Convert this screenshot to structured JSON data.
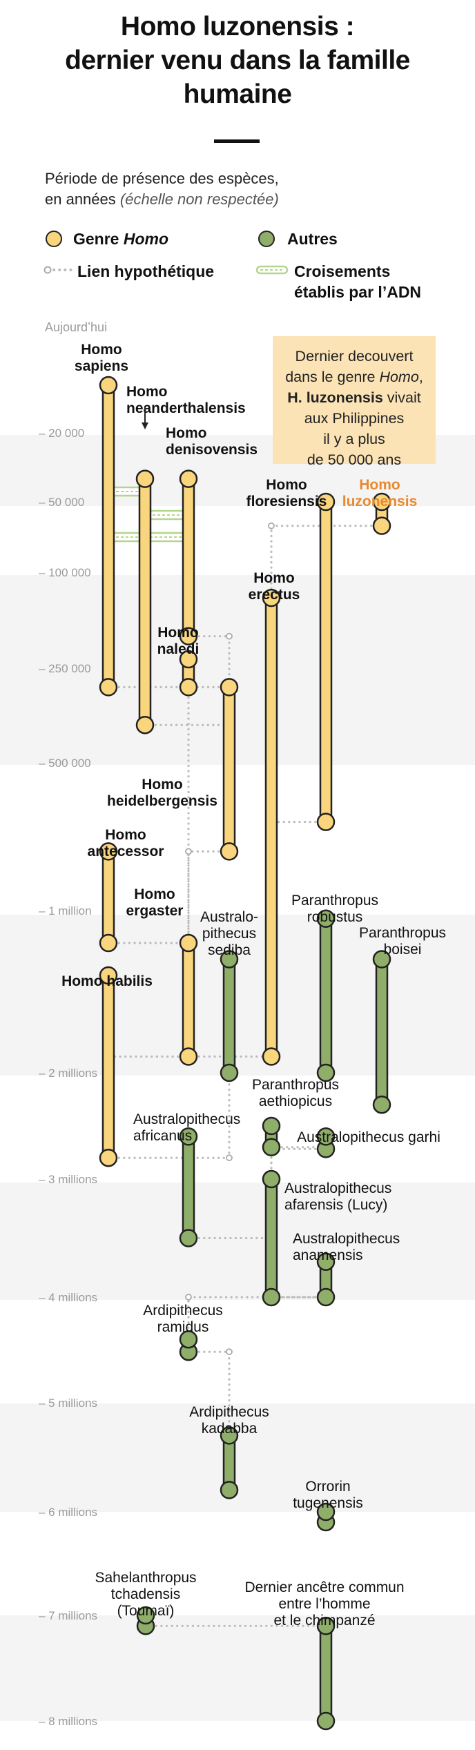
{
  "title": {
    "line1": "Homo luzonensis :",
    "line2": "dernier venu dans la famille",
    "line3": "humaine"
  },
  "subtitle": {
    "line1": "Période de présence des espèces,",
    "line2": "en années",
    "note": "(échelle non respectée)"
  },
  "legend": {
    "homo_prefix": "Genre ",
    "homo_italic": "Homo",
    "others": "Autres",
    "hypothetical": "Lien hypothétique",
    "crossing_line1": "Croisements",
    "crossing_line2": "établis par l’ADN"
  },
  "colors": {
    "homo": "#f9d57d",
    "others": "#8fae6a",
    "band": "#f4f4f4",
    "dotted": "#bbbbbb",
    "dna": "#b4d58c",
    "callout": "#fbe3b6",
    "highlight": "#e8892d",
    "axis": "#9a9a9a"
  },
  "top_label": "Aujourd’hui",
  "axis_ticks": [
    "– 20 000",
    "– 50 000",
    "– 100 000",
    "– 250 000",
    "– 500 000",
    "– 1 million",
    "– 2 millions",
    "– 3 millions",
    "– 4 millions",
    "– 5 millions",
    "– 6 millions",
    "– 7 millions",
    "– 8 millions"
  ],
  "callout": {
    "l1": "Dernier decouvert",
    "l2a": "dans le genre ",
    "l2b": "Homo",
    "l2c": ",",
    "l3a": "H. luzonensis",
    "l3b": " vivait",
    "l4": "aux Philippines",
    "l5": "il y a plus",
    "l6": "de 50 000 ans"
  },
  "species": [
    {
      "id": "sapiens",
      "group": "homo",
      "label": [
        "Homo",
        "sapiens"
      ],
      "bold": true,
      "span": [
        0,
        300000
      ]
    },
    {
      "id": "neanderthalensis",
      "group": "homo",
      "label": [
        "Homo",
        "neanderthalensis"
      ],
      "bold": true,
      "span": [
        40000,
        400000
      ]
    },
    {
      "id": "denisovensis",
      "group": "homo",
      "label": [
        "Homo",
        "denisovensis"
      ],
      "bold": true,
      "span": [
        40000,
        200000
      ]
    },
    {
      "id": "floresiensis",
      "group": "homo",
      "label": [
        "Homo",
        "floresiensis"
      ],
      "bold": true,
      "span": [
        50000,
        700000
      ]
    },
    {
      "id": "luzonensis",
      "group": "homo",
      "label": [
        "Homo",
        "luzonensis"
      ],
      "bold": true,
      "highlight": true,
      "span": [
        50000,
        67000
      ]
    },
    {
      "id": "naledi",
      "group": "homo",
      "label": [
        "Homo",
        "naledi"
      ],
      "bold": true,
      "span": [
        236000,
        300000
      ]
    },
    {
      "id": "erectus",
      "group": "homo",
      "label": [
        "Homo",
        "erectus"
      ],
      "bold": true,
      "span": [
        140000,
        1900000
      ]
    },
    {
      "id": "heidelbergensis",
      "group": "homo",
      "label": [
        "Homo",
        "heidelbergensis"
      ],
      "bold": true,
      "span": [
        300000,
        800000
      ]
    },
    {
      "id": "antecessor",
      "group": "homo",
      "label": [
        "Homo",
        "antecessor"
      ],
      "bold": true,
      "span": [
        800000,
        1200000
      ]
    },
    {
      "id": "ergaster",
      "group": "homo",
      "label": [
        "Homo",
        "ergaster"
      ],
      "bold": true,
      "span": [
        1200000,
        1900000
      ]
    },
    {
      "id": "habilis",
      "group": "homo",
      "label": [
        "Homo habilis"
      ],
      "bold": true,
      "span": [
        1400000,
        2800000
      ]
    },
    {
      "id": "sediba",
      "group": "others",
      "label": [
        "Australo-",
        "pithecus",
        "sediba"
      ],
      "span": [
        1300000,
        2000000
      ]
    },
    {
      "id": "robustus",
      "group": "others",
      "label": [
        "Paranthropus",
        "robustus"
      ],
      "span": [
        1050000,
        2000000
      ]
    },
    {
      "id": "boisei",
      "group": "others",
      "label": [
        "Paranthropus",
        "boisei"
      ],
      "span": [
        1300000,
        2300000
      ]
    },
    {
      "id": "aethiopicus",
      "group": "others",
      "label": [
        "Paranthropus",
        "aethiopicus"
      ],
      "span": [
        2500000,
        2700000
      ]
    },
    {
      "id": "garhi",
      "group": "others",
      "label": [
        "Australopithecus garhi"
      ],
      "span": [
        2600000,
        2600000
      ]
    },
    {
      "id": "africanus",
      "group": "others",
      "label": [
        "Australopithecus",
        "africanus"
      ],
      "span": [
        2600000,
        3500000
      ]
    },
    {
      "id": "afarensis",
      "group": "others",
      "label": [
        "Australopithecus",
        "afarensis (Lucy)"
      ],
      "span": [
        3000000,
        4000000
      ]
    },
    {
      "id": "anamensis",
      "group": "others",
      "label": [
        "Australopithecus",
        "anamensis"
      ],
      "span": [
        3700000,
        4000000
      ]
    },
    {
      "id": "ramidus",
      "group": "others",
      "label": [
        "Ardipithecus",
        "ramidus"
      ],
      "span": [
        4400000,
        4400000
      ]
    },
    {
      "id": "kadabba",
      "group": "others",
      "label": [
        "Ardipithecus",
        "kadabba"
      ],
      "span": [
        5300000,
        5800000
      ]
    },
    {
      "id": "tugenensis",
      "group": "others",
      "label": [
        "Orrorin",
        "tugenensis"
      ],
      "span": [
        6000000,
        6100000
      ]
    },
    {
      "id": "tchadensis",
      "group": "others",
      "label": [
        "Sahelanthropus",
        "tchadensis",
        "(Toumaï)"
      ],
      "span": [
        7000000,
        7100000
      ]
    },
    {
      "id": "ancestor",
      "group": "others",
      "label": [
        "Dernier ancêtre commun",
        "entre l’homme",
        "et le chimpanzé"
      ],
      "span": [
        7100000,
        8000000
      ]
    }
  ],
  "dna_crossings": [
    [
      "sapiens",
      "neanderthalensis"
    ],
    [
      "sapiens",
      "denisovensis"
    ],
    [
      "neanderthalensis",
      "denisovensis"
    ]
  ],
  "hypothetical_links": [
    [
      "sapiens",
      "heidelbergensis"
    ],
    [
      "neanderthalensis",
      "heidelbergensis"
    ],
    [
      "denisovensis",
      "heidelbergensis"
    ],
    [
      "naledi",
      "ergaster"
    ],
    [
      "heidelbergensis",
      "ergaster"
    ],
    [
      "floresiensis",
      "erectus"
    ],
    [
      "luzonensis",
      "erectus"
    ],
    [
      "antecessor",
      "ergaster"
    ],
    [
      "ergaster",
      "erectus"
    ],
    [
      "ergaster",
      "habilis"
    ],
    [
      "habilis",
      "sediba"
    ],
    [
      "africanus",
      "afarensis"
    ],
    [
      "aethiopicus",
      "garhi"
    ],
    [
      "aethiopicus",
      "afarensis"
    ],
    [
      "garhi",
      "afarensis"
    ],
    [
      "afarensis",
      "anamensis"
    ],
    [
      "anamensis",
      "ramidus"
    ],
    [
      "ramidus",
      "kadabba"
    ],
    [
      "tchadensis",
      "ancestor"
    ]
  ]
}
